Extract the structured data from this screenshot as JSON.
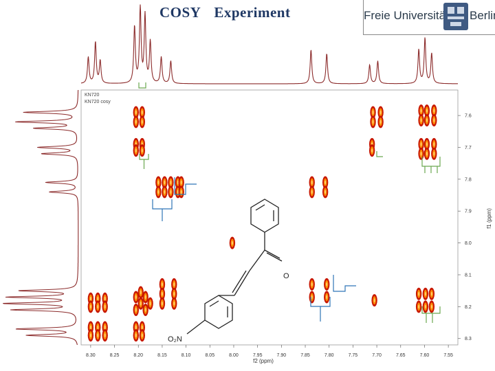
{
  "slide": {
    "title": "COSY   Experiment",
    "logo": {
      "left_text": "Freie Universität",
      "right_text": "Berlin"
    }
  },
  "sample_labels": [
    "KN720",
    "KN720 cosy"
  ],
  "molecule": {
    "nitro_label": "O₂N",
    "carbonyl_label": "O"
  },
  "colors": {
    "spectrum": "#8b2a2a",
    "peak_outer": "#c81800",
    "peak_inner": "#ff8c00",
    "green_bracket": "#6aa84f",
    "blue_bracket": "#2e75b6"
  },
  "chart_data": {
    "type": "heatmap",
    "xlabel": "f2 (ppm)",
    "ylabel": "f1 (ppm)",
    "xlim": [
      8.32,
      7.53
    ],
    "ylim": [
      7.52,
      8.32
    ],
    "x_ticks": [
      8.3,
      8.25,
      8.2,
      8.15,
      8.1,
      8.05,
      8.0,
      7.95,
      7.9,
      7.85,
      7.8,
      7.75,
      7.7,
      7.65,
      7.6,
      7.55
    ],
    "x_tick_labels": [
      "8.30",
      "8.25",
      "8.20",
      "8.15",
      "8.10",
      "8.05",
      "8.00",
      "7.95",
      "7.90",
      "7.85",
      "7.80",
      "7.75",
      "7.70",
      "7.65",
      "7.60",
      "7.55"
    ],
    "y_ticks": [
      7.6,
      7.7,
      7.8,
      7.9,
      8.0,
      8.1,
      8.2,
      8.3
    ],
    "y_tick_labels": [
      "7.6",
      "7.7",
      "7.8",
      "7.9",
      "8.0",
      "8.1",
      "8.2",
      "8.3"
    ],
    "grid": false,
    "cross_peaks": [
      {
        "x": 8.205,
        "y": 7.59
      },
      {
        "x": 8.192,
        "y": 7.59
      },
      {
        "x": 8.205,
        "y": 7.62
      },
      {
        "x": 8.192,
        "y": 7.62
      },
      {
        "x": 8.205,
        "y": 7.69
      },
      {
        "x": 8.192,
        "y": 7.69
      },
      {
        "x": 8.205,
        "y": 7.71
      },
      {
        "x": 8.192,
        "y": 7.71
      },
      {
        "x": 8.158,
        "y": 7.81
      },
      {
        "x": 8.145,
        "y": 7.81
      },
      {
        "x": 8.158,
        "y": 7.84
      },
      {
        "x": 8.145,
        "y": 7.84
      },
      {
        "x": 8.132,
        "y": 7.81
      },
      {
        "x": 8.132,
        "y": 7.84
      },
      {
        "x": 8.117,
        "y": 7.81
      },
      {
        "x": 8.11,
        "y": 7.81
      },
      {
        "x": 8.117,
        "y": 7.84
      },
      {
        "x": 8.11,
        "y": 7.84
      },
      {
        "x": 7.836,
        "y": 7.81
      },
      {
        "x": 7.836,
        "y": 7.84
      },
      {
        "x": 7.808,
        "y": 7.81
      },
      {
        "x": 7.808,
        "y": 7.84
      },
      {
        "x": 8.003,
        "y": 8.0
      },
      {
        "x": 8.3,
        "y": 8.175
      },
      {
        "x": 8.3,
        "y": 8.2
      },
      {
        "x": 8.285,
        "y": 8.175
      },
      {
        "x": 8.285,
        "y": 8.2
      },
      {
        "x": 8.27,
        "y": 8.175
      },
      {
        "x": 8.27,
        "y": 8.2
      },
      {
        "x": 8.3,
        "y": 8.265
      },
      {
        "x": 8.3,
        "y": 8.29
      },
      {
        "x": 8.285,
        "y": 8.265
      },
      {
        "x": 8.285,
        "y": 8.29
      },
      {
        "x": 8.27,
        "y": 8.265
      },
      {
        "x": 8.27,
        "y": 8.29
      },
      {
        "x": 8.205,
        "y": 8.17
      },
      {
        "x": 8.195,
        "y": 8.19
      },
      {
        "x": 8.185,
        "y": 8.17
      },
      {
        "x": 8.205,
        "y": 8.21
      },
      {
        "x": 8.185,
        "y": 8.21
      },
      {
        "x": 8.195,
        "y": 8.155
      },
      {
        "x": 8.175,
        "y": 8.19
      },
      {
        "x": 8.205,
        "y": 8.265
      },
      {
        "x": 8.205,
        "y": 8.29
      },
      {
        "x": 8.192,
        "y": 8.265
      },
      {
        "x": 8.192,
        "y": 8.29
      },
      {
        "x": 8.15,
        "y": 8.13
      },
      {
        "x": 8.15,
        "y": 8.16
      },
      {
        "x": 8.15,
        "y": 8.19
      },
      {
        "x": 8.125,
        "y": 8.13
      },
      {
        "x": 8.125,
        "y": 8.16
      },
      {
        "x": 8.125,
        "y": 8.19
      },
      {
        "x": 7.836,
        "y": 8.13
      },
      {
        "x": 7.836,
        "y": 8.17
      },
      {
        "x": 7.805,
        "y": 8.13
      },
      {
        "x": 7.805,
        "y": 8.17
      },
      {
        "x": 7.708,
        "y": 7.59
      },
      {
        "x": 7.708,
        "y": 7.62
      },
      {
        "x": 7.692,
        "y": 7.59
      },
      {
        "x": 7.692,
        "y": 7.62
      },
      {
        "x": 7.71,
        "y": 7.69
      },
      {
        "x": 7.71,
        "y": 7.71
      },
      {
        "x": 7.705,
        "y": 8.18
      },
      {
        "x": 7.607,
        "y": 7.585
      },
      {
        "x": 7.595,
        "y": 7.585
      },
      {
        "x": 7.607,
        "y": 7.615
      },
      {
        "x": 7.595,
        "y": 7.615
      },
      {
        "x": 7.58,
        "y": 7.585
      },
      {
        "x": 7.58,
        "y": 7.615
      },
      {
        "x": 7.607,
        "y": 7.69
      },
      {
        "x": 7.595,
        "y": 7.69
      },
      {
        "x": 7.58,
        "y": 7.69
      },
      {
        "x": 7.607,
        "y": 7.72
      },
      {
        "x": 7.595,
        "y": 7.72
      },
      {
        "x": 7.58,
        "y": 7.72
      },
      {
        "x": 7.612,
        "y": 8.16
      },
      {
        "x": 7.598,
        "y": 8.16
      },
      {
        "x": 7.585,
        "y": 8.16
      },
      {
        "x": 7.612,
        "y": 8.2
      },
      {
        "x": 7.598,
        "y": 8.2
      },
      {
        "x": 7.585,
        "y": 8.2
      }
    ],
    "projection_peaks": [
      {
        "x": 8.305,
        "h": 0.35
      },
      {
        "x": 8.29,
        "h": 0.55
      },
      {
        "x": 8.28,
        "h": 0.3
      },
      {
        "x": 8.208,
        "h": 0.75
      },
      {
        "x": 8.196,
        "h": 1.0
      },
      {
        "x": 8.186,
        "h": 0.9
      },
      {
        "x": 8.175,
        "h": 0.55
      },
      {
        "x": 8.152,
        "h": 0.35
      },
      {
        "x": 8.132,
        "h": 0.3
      },
      {
        "x": 7.838,
        "h": 0.45
      },
      {
        "x": 7.805,
        "h": 0.4
      },
      {
        "x": 7.715,
        "h": 0.25
      },
      {
        "x": 7.698,
        "h": 0.3
      },
      {
        "x": 7.612,
        "h": 0.45
      },
      {
        "x": 7.599,
        "h": 0.6
      },
      {
        "x": 7.585,
        "h": 0.4
      }
    ],
    "f1_projection_peaks": [
      {
        "y": 7.59,
        "h": 0.75
      },
      {
        "y": 7.62,
        "h": 0.85
      },
      {
        "y": 7.64,
        "h": 0.6
      },
      {
        "y": 7.7,
        "h": 0.55
      },
      {
        "y": 7.72,
        "h": 0.5
      },
      {
        "y": 7.81,
        "h": 0.45
      },
      {
        "y": 7.84,
        "h": 0.4
      },
      {
        "y": 8.15,
        "h": 0.8
      },
      {
        "y": 8.17,
        "h": 0.95
      },
      {
        "y": 8.19,
        "h": 1.0
      },
      {
        "y": 8.21,
        "h": 0.9
      },
      {
        "y": 8.27,
        "h": 0.85
      },
      {
        "y": 8.29,
        "h": 0.7
      }
    ]
  }
}
